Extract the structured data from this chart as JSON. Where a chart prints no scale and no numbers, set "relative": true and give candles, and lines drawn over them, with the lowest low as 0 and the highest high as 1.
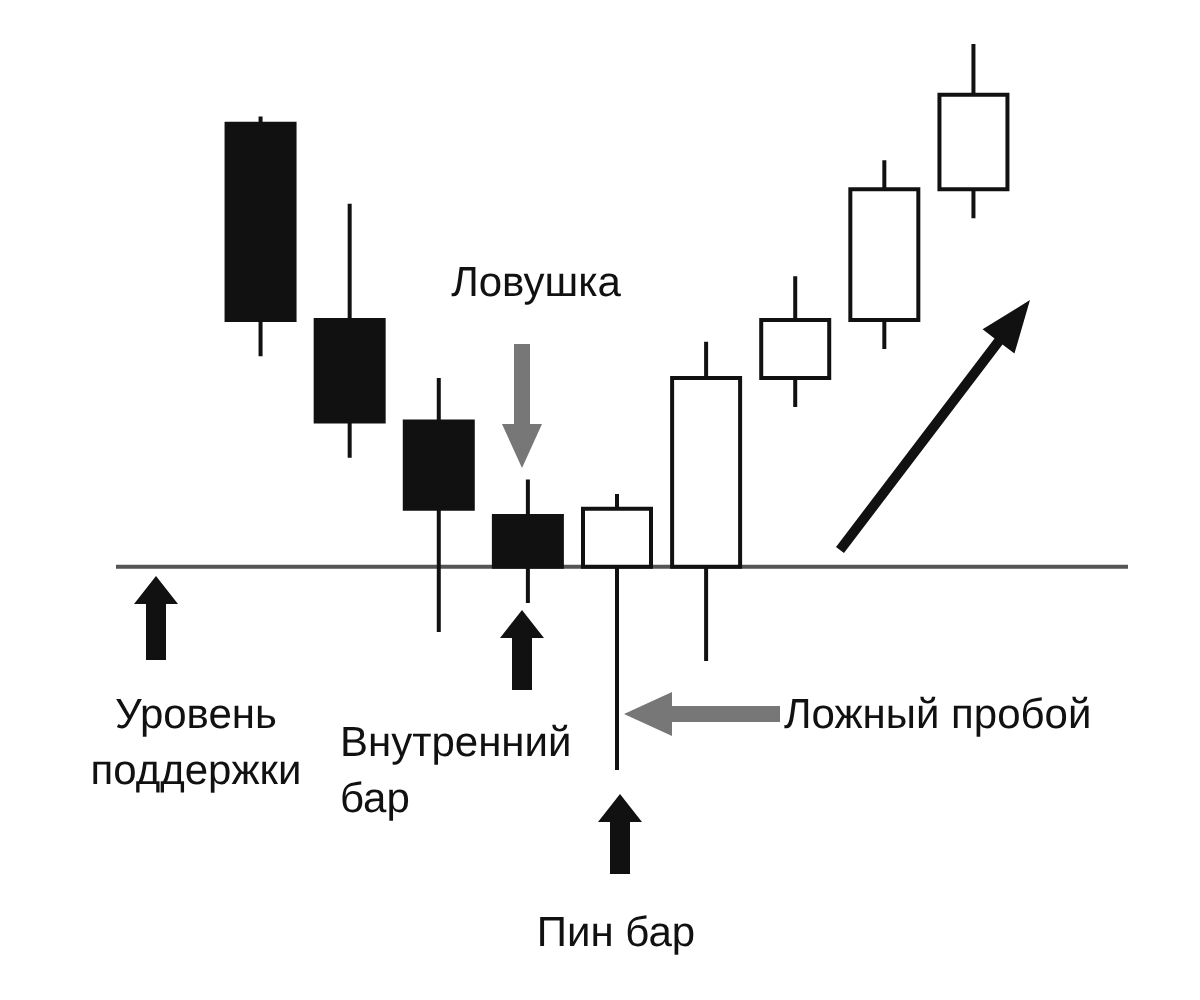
{
  "chart_data": {
    "type": "candlestick",
    "relative": true,
    "ohlc": [
      [
        0.89,
        0.9,
        0.57,
        0.62
      ],
      [
        0.62,
        0.78,
        0.43,
        0.48
      ],
      [
        0.48,
        0.54,
        0.19,
        0.36
      ],
      [
        0.35,
        0.4,
        0.23,
        0.28
      ],
      [
        0.28,
        0.38,
        0,
        0.36
      ],
      [
        0.28,
        0.59,
        0.15,
        0.54
      ],
      [
        0.54,
        0.68,
        0.5,
        0.62
      ],
      [
        0.62,
        0.84,
        0.58,
        0.8
      ],
      [
        0.8,
        1,
        0.76,
        0.93
      ]
    ],
    "ref_lines": [
      {
        "axis": "y",
        "value": 0.28,
        "label": "Уровень поддержки",
        "color": "#555555"
      }
    ],
    "annotations": [
      "Ловушка",
      "Внутренний бар",
      "Ложный пробой",
      "Пин бар"
    ],
    "legend": false
  }
}
